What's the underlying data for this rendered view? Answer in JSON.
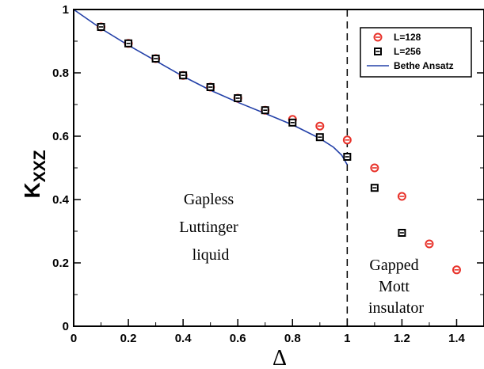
{
  "chart_data": {
    "type": "scatter",
    "xlabel": "Δ",
    "ylabel": {
      "main": "K",
      "sub": "XXZ"
    },
    "xlim": [
      0,
      1.5
    ],
    "ylim": [
      0,
      1
    ],
    "x_ticks": [
      "0",
      "0.2",
      "0.4",
      "0.6",
      "0.8",
      "1",
      "1.2",
      "1.4"
    ],
    "y_ticks": [
      "0",
      "0.2",
      "0.4",
      "0.6",
      "0.8",
      "1"
    ],
    "vertical_line": {
      "x": 1,
      "style": "dashed"
    },
    "legend": {
      "placement": "top-right",
      "entries": [
        {
          "label": "L=128",
          "marker": "circle-minus",
          "color": "#e8322a"
        },
        {
          "label": "L=256",
          "marker": "square-minus",
          "color": "#000000"
        },
        {
          "label": "Bethe Ansatz",
          "marker": "line",
          "color": "#2340a8"
        }
      ]
    },
    "series": [
      {
        "name": "L=128",
        "color": "#e8322a",
        "x": [
          0.1,
          0.2,
          0.3,
          0.4,
          0.5,
          0.6,
          0.7,
          0.8,
          0.9,
          1.0,
          1.1,
          1.2,
          1.3,
          1.4
        ],
        "y": [
          0.945,
          0.893,
          0.845,
          0.792,
          0.755,
          0.72,
          0.682,
          0.653,
          0.632,
          0.588,
          0.5,
          0.41,
          0.26,
          0.178
        ]
      },
      {
        "name": "L=256",
        "color": "#000000",
        "x": [
          0.1,
          0.2,
          0.3,
          0.4,
          0.5,
          0.6,
          0.7,
          0.8,
          0.9,
          1.0,
          1.1,
          1.2
        ],
        "y": [
          0.945,
          0.893,
          0.845,
          0.792,
          0.755,
          0.72,
          0.682,
          0.643,
          0.597,
          0.535,
          0.437,
          0.295
        ]
      },
      {
        "name": "Bethe Ansatz",
        "color": "#2340a8",
        "x": [
          0,
          0.1,
          0.2,
          0.3,
          0.4,
          0.5,
          0.6,
          0.7,
          0.8,
          0.9,
          0.95,
          0.98,
          1.0
        ],
        "y": [
          1.0,
          0.94,
          0.887,
          0.838,
          0.789,
          0.745,
          0.707,
          0.672,
          0.636,
          0.593,
          0.565,
          0.54,
          0.51
        ]
      }
    ],
    "annotations": [
      {
        "lines": [
          "Gapless",
          "Luttinger",
          "liquid"
        ]
      },
      {
        "lines": [
          "Gapped",
          "Mott",
          "insulator"
        ]
      }
    ]
  }
}
